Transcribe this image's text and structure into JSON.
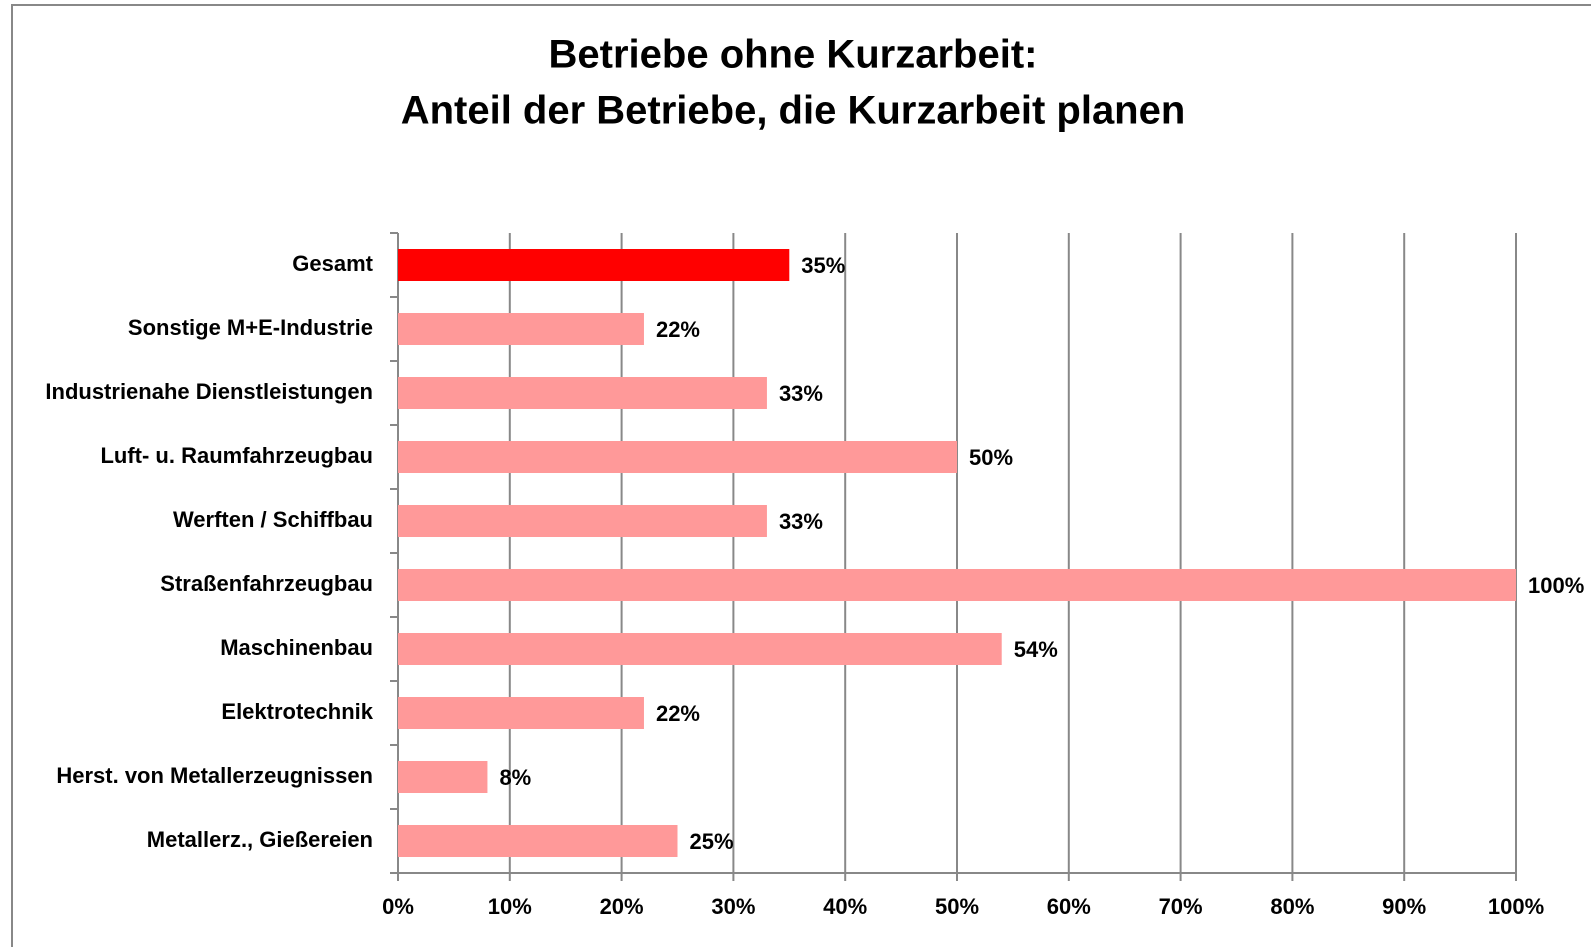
{
  "chart_data": {
    "type": "bar",
    "orientation": "horizontal",
    "title": [
      "Betriebe ohne Kurzarbeit:",
      "Anteil der Betriebe, die Kurzarbeit planen"
    ],
    "categories": [
      "Gesamt",
      "Sonstige M+E-Industrie",
      "Industrienahe Dienstleistungen",
      "Luft- u. Raumfahrzeugbau",
      "Werften / Schiffbau",
      "Straßenfahrzeugbau",
      "Maschinenbau",
      "Elektrotechnik",
      "Herst. von Metallerzeugnissen",
      "Metallerz., Gießereien"
    ],
    "values": [
      35,
      22,
      33,
      50,
      33,
      100,
      54,
      22,
      8,
      25
    ],
    "value_labels": [
      "35%",
      "22%",
      "33%",
      "50%",
      "33%",
      "100%",
      "54%",
      "22%",
      "8%",
      "25%"
    ],
    "colors": [
      "#ff0000",
      "#ff9999",
      "#ff9999",
      "#ff9999",
      "#ff9999",
      "#ff9999",
      "#ff9999",
      "#ff9999",
      "#ff9999",
      "#ff9999"
    ],
    "xlim": [
      0,
      100
    ],
    "xticks": [
      {
        "value": 0,
        "label": "0%"
      },
      {
        "value": 10,
        "label": "10%"
      },
      {
        "value": 20,
        "label": "20%"
      },
      {
        "value": 30,
        "label": "30%"
      },
      {
        "value": 40,
        "label": "40%"
      },
      {
        "value": 50,
        "label": "50%"
      },
      {
        "value": 60,
        "label": "60%"
      },
      {
        "value": 70,
        "label": "70%"
      },
      {
        "value": 80,
        "label": "80%"
      },
      {
        "value": 90,
        "label": "90%"
      },
      {
        "value": 100,
        "label": "100%"
      }
    ],
    "grid": true
  }
}
